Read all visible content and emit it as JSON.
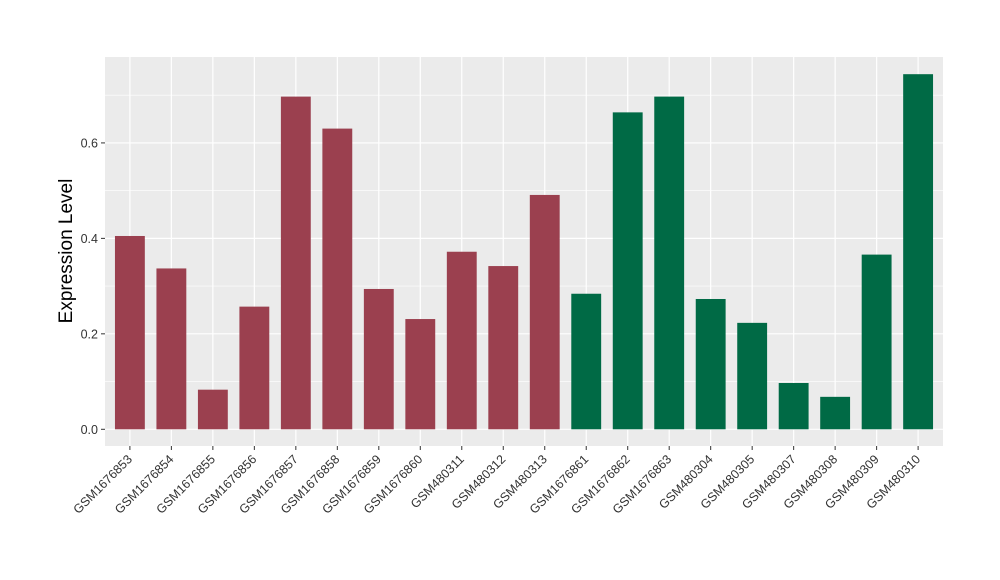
{
  "chart_data": {
    "type": "bar",
    "title": "",
    "xlabel": "",
    "ylabel": "Expression Level",
    "ylim": [
      -0.035,
      0.78
    ],
    "yticks": [
      0.0,
      0.2,
      0.4,
      0.6
    ],
    "ytick_labels": [
      "0.0",
      "0.2",
      "0.4",
      "0.6"
    ],
    "grid": true,
    "legend": "none",
    "colors": {
      "group_a": "#9b404f",
      "group_b": "#006a45",
      "panel": "#ebebeb",
      "grid": "#ffffff"
    },
    "categories": [
      "GSM1676853",
      "GSM1676854",
      "GSM1676855",
      "GSM1676856",
      "GSM1676857",
      "GSM1676858",
      "GSM1676859",
      "GSM1676860",
      "GSM480311",
      "GSM480312",
      "GSM480313",
      "GSM1676861",
      "GSM1676862",
      "GSM1676863",
      "GSM480304",
      "GSM480305",
      "GSM480307",
      "GSM480308",
      "GSM480309",
      "GSM480310"
    ],
    "values": [
      0.405,
      0.337,
      0.083,
      0.257,
      0.697,
      0.63,
      0.294,
      0.231,
      0.372,
      0.342,
      0.491,
      0.284,
      0.664,
      0.697,
      0.273,
      0.223,
      0.097,
      0.068,
      0.366,
      0.744
    ],
    "group": [
      "a",
      "a",
      "a",
      "a",
      "a",
      "a",
      "a",
      "a",
      "a",
      "a",
      "a",
      "b",
      "b",
      "b",
      "b",
      "b",
      "b",
      "b",
      "b",
      "b"
    ]
  }
}
